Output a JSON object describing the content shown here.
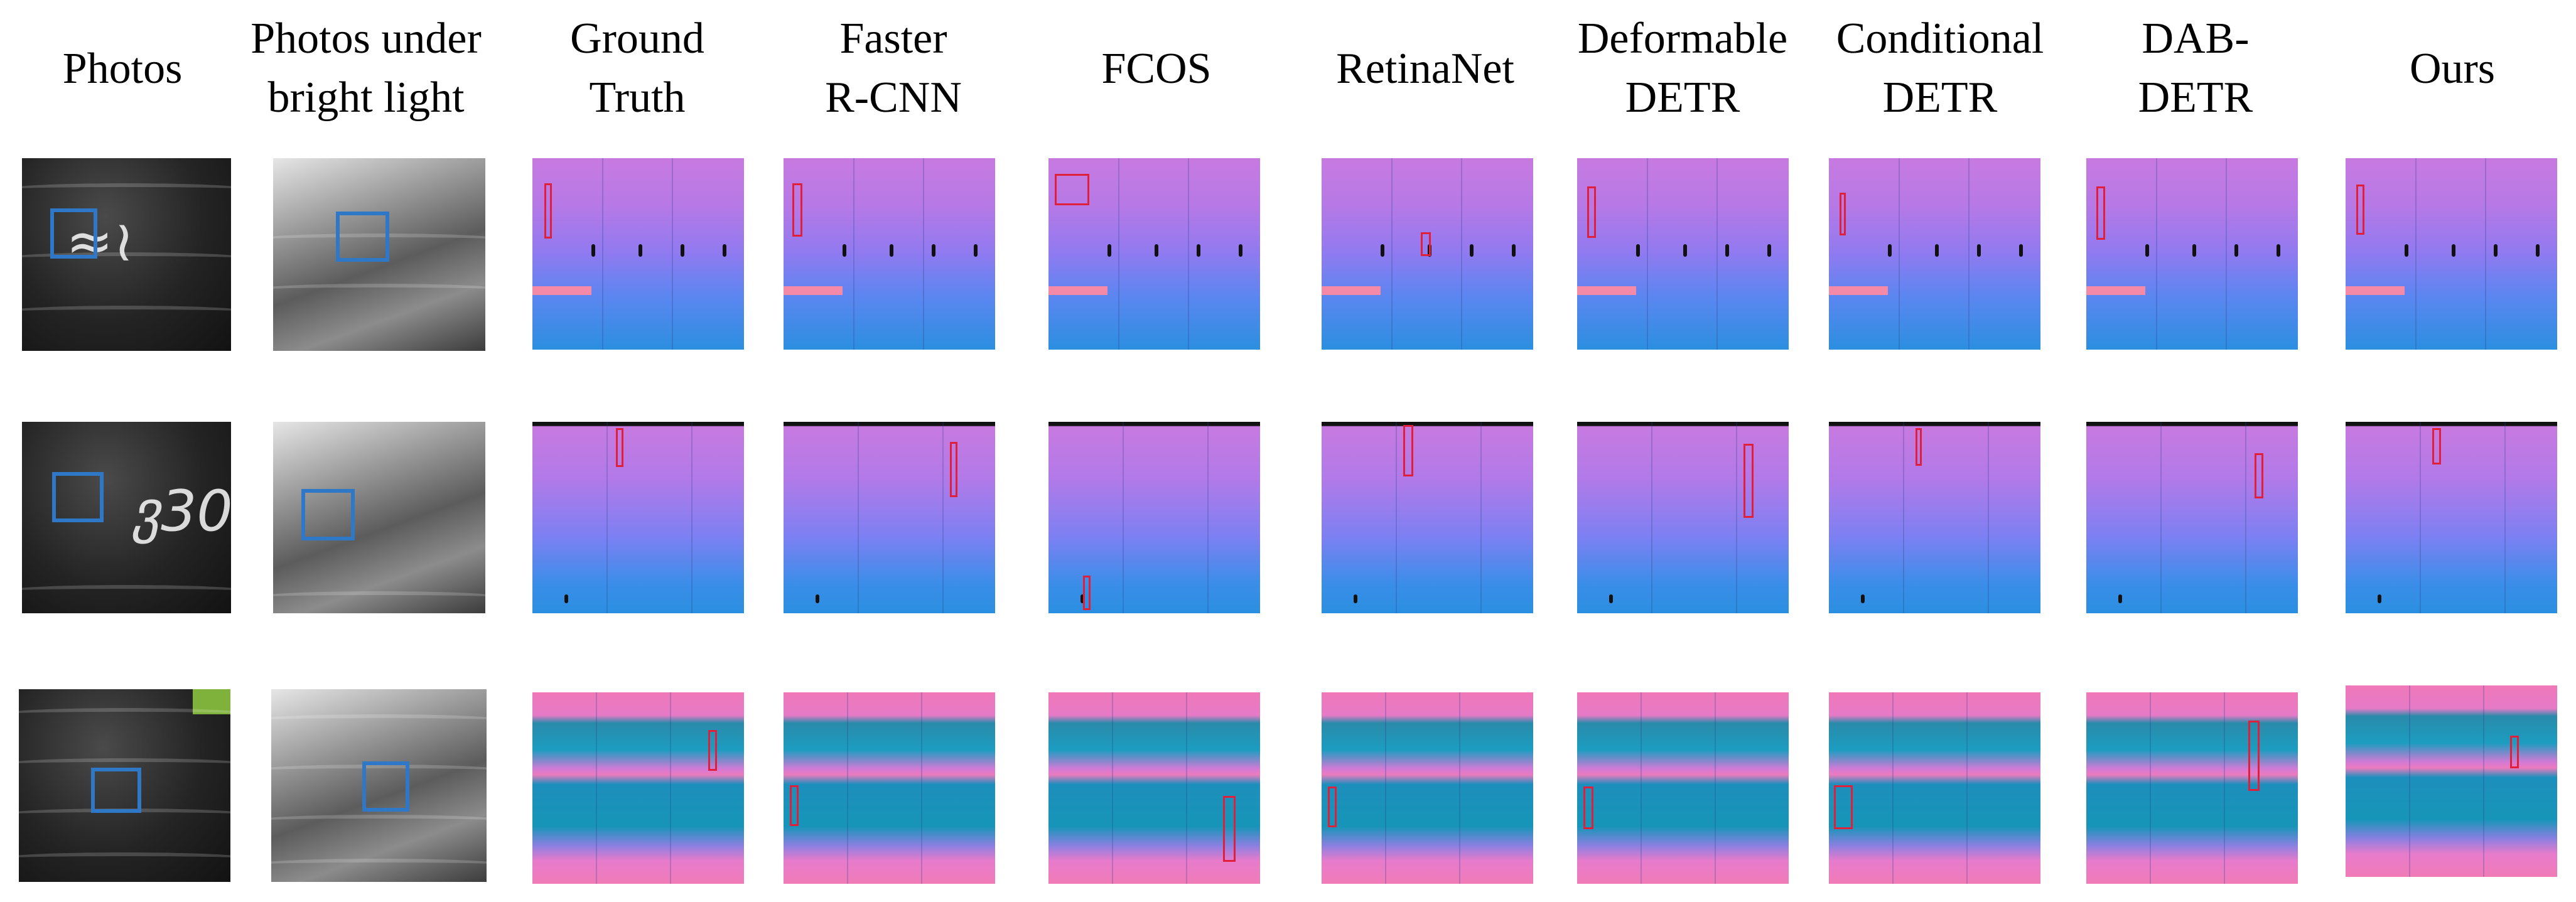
{
  "figure": {
    "column_headers": [
      {
        "line1": "Photos",
        "line2": ""
      },
      {
        "line1": "Photos under",
        "line2": "bright light"
      },
      {
        "line1": "Ground",
        "line2": "Truth"
      },
      {
        "line1": "Faster",
        "line2": "R-CNN"
      },
      {
        "line1": "FCOS",
        "line2": ""
      },
      {
        "line1": "RetinaNet",
        "line2": ""
      },
      {
        "line1": "Deformable",
        "line2": "DETR"
      },
      {
        "line1": "Conditional",
        "line2": "DETR"
      },
      {
        "line1": "DAB-",
        "line2": "DETR"
      },
      {
        "line1": "Ours",
        "line2": ""
      }
    ],
    "chalk_marks": {
      "row1": "≈≀",
      "row2": "ვ30",
      "row3": ""
    },
    "colors": {
      "marking_box": "#2f78c7",
      "detection_box": "#e0203a"
    }
  }
}
